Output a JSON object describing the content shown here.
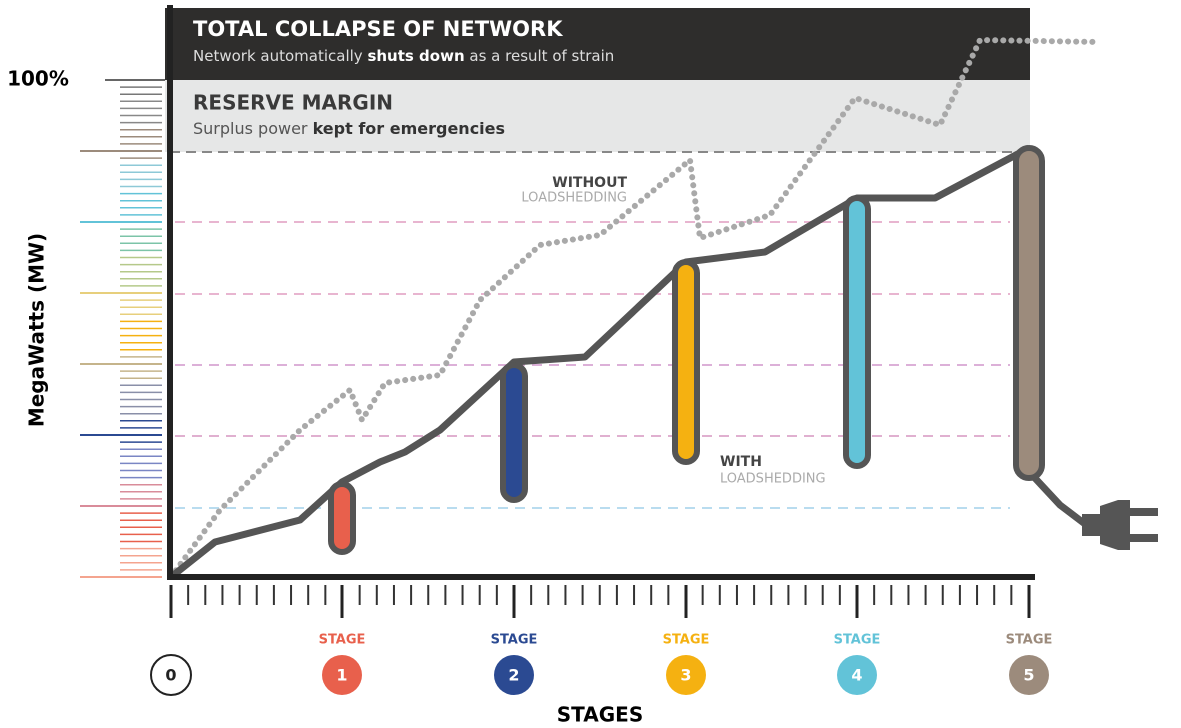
{
  "y_axis": {
    "label": "MegaWatts (MW)",
    "top_label": "100%"
  },
  "x_axis": {
    "label": "STAGES"
  },
  "bands": {
    "collapse": {
      "title": "TOTAL COLLAPSE OF NETWORK",
      "subtitle": [
        "Network automatically ",
        "shuts down",
        " as a result of strain"
      ]
    },
    "reserve": {
      "title": "RESERVE MARGIN",
      "subtitle": [
        "Surplus power ",
        "kept for emergencies"
      ]
    }
  },
  "annotations": {
    "without": {
      "line1": "WITHOUT",
      "line2": "LOADSHEDDING"
    },
    "with": {
      "line1": "WITH",
      "line2": "LOADSHEDDING"
    }
  },
  "stages": [
    {
      "number": "0",
      "color": "#ffffff"
    },
    {
      "label": "STAGE",
      "number": "1",
      "color": "#e8604c"
    },
    {
      "label": "STAGE",
      "number": "2",
      "color": "#2b4a92"
    },
    {
      "label": "STAGE",
      "number": "3",
      "color": "#f5b111"
    },
    {
      "label": "STAGE",
      "number": "4",
      "color": "#62c3d8"
    },
    {
      "label": "STAGE",
      "number": "5",
      "color": "#9c8b7c"
    }
  ]
}
